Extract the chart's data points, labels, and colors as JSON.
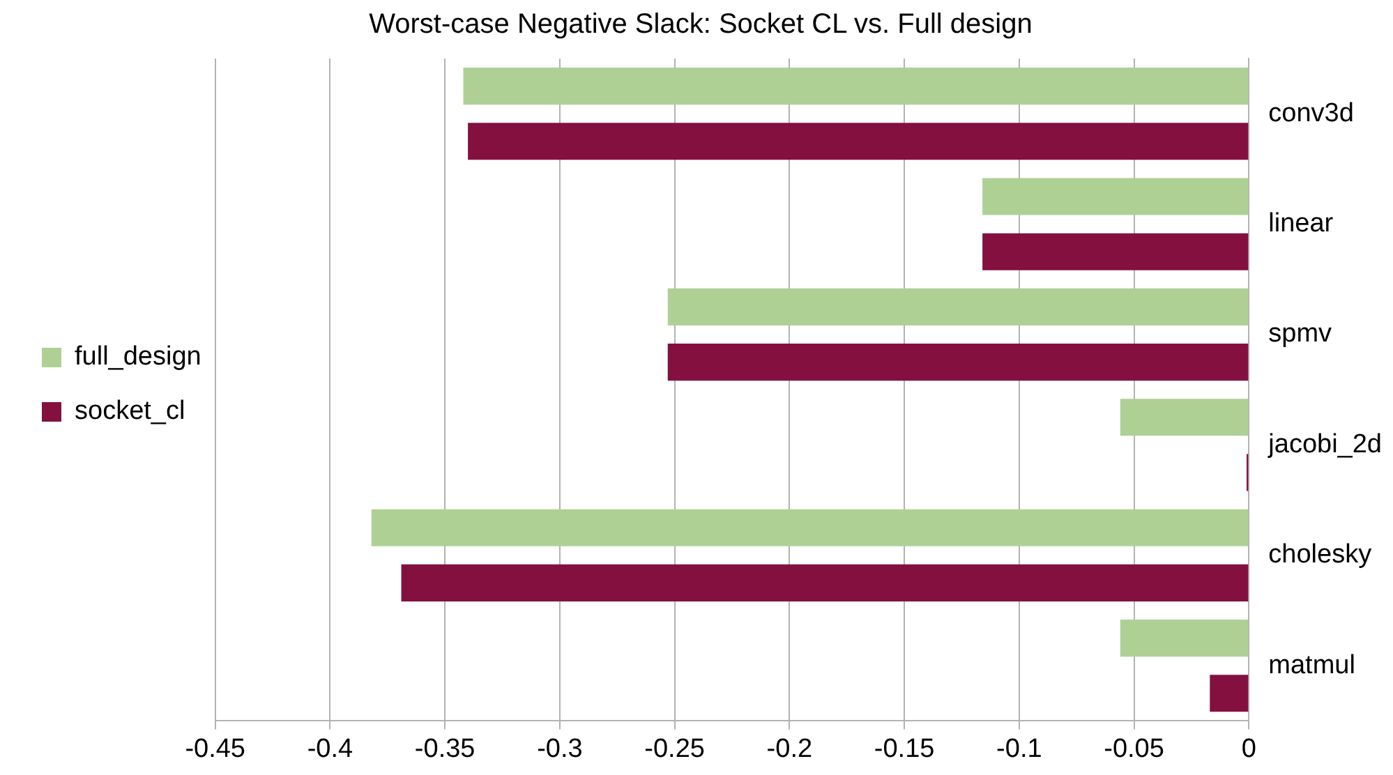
{
  "chart_data": {
    "type": "bar",
    "orientation": "horizontal",
    "title": "Worst-case Negative Slack: Socket CL vs. Full design",
    "categories": [
      "conv3d",
      "linear",
      "spmv",
      "jacobi_2d",
      "cholesky",
      "matmul"
    ],
    "series": [
      {
        "name": "full_design",
        "color": "#afd095",
        "values": [
          -0.342,
          -0.116,
          -0.253,
          -0.056,
          -0.382,
          -0.056
        ]
      },
      {
        "name": "socket_cl",
        "color": "#841040",
        "values": [
          -0.34,
          -0.116,
          -0.253,
          -0.001,
          -0.369,
          -0.017
        ]
      }
    ],
    "xlim": [
      -0.45,
      0
    ],
    "xticks": [
      -0.45,
      -0.4,
      -0.35,
      -0.3,
      -0.25,
      -0.2,
      -0.15,
      -0.1,
      -0.05,
      0
    ],
    "grid": "x",
    "legend": "left"
  }
}
